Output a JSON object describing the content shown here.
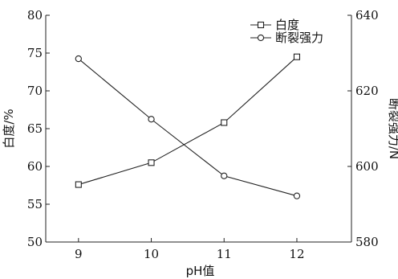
{
  "chart_data": {
    "type": "line",
    "x": [
      9,
      10,
      11,
      12
    ],
    "x_tick_labels": [
      "9",
      "10",
      "11",
      "12"
    ],
    "xlabel": "pH值",
    "xlim": [
      8.55,
      12.75
    ],
    "series": [
      {
        "name": "白度",
        "axis": "left",
        "marker": "square",
        "values": [
          57.6,
          60.5,
          65.8,
          74.5
        ]
      },
      {
        "name": "断裂强力",
        "axis": "right",
        "marker": "circle",
        "values": [
          628.5,
          612.5,
          597.5,
          592.2
        ]
      }
    ],
    "ylabel_left": "白度/%",
    "ylim_left": [
      50,
      80
    ],
    "y_left_ticks": [
      50,
      55,
      60,
      65,
      70,
      75,
      80
    ],
    "ylabel_right": "断裂强力/N",
    "ylim_right": [
      580,
      640
    ],
    "y_right_ticks": [
      580,
      600,
      620,
      640
    ],
    "legend_position": "top-right",
    "grid": false
  }
}
